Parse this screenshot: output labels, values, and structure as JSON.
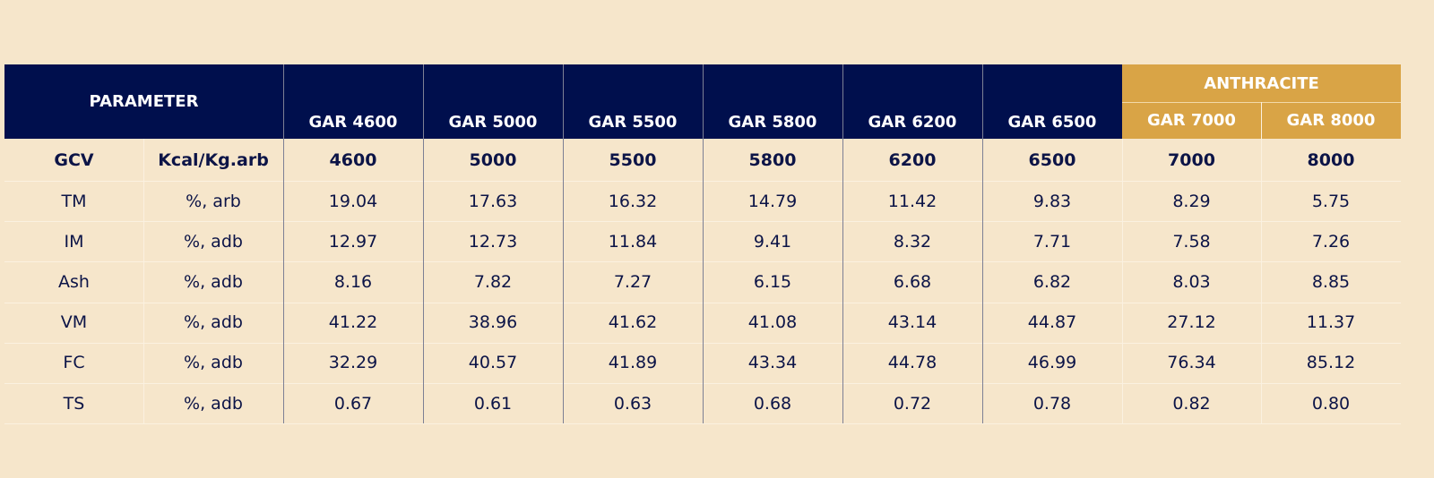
{
  "table": {
    "header": {
      "parameter": "PARAMETER",
      "group": "ANTHRACITE",
      "columns": [
        "GAR 4600",
        "GAR 5000",
        "GAR 5500",
        "GAR 5800",
        "GAR 6200",
        "GAR 6500",
        "GAR 7000",
        "GAR 8000"
      ]
    },
    "rows": [
      [
        "GCV",
        "Kcal/Kg.arb",
        "4600",
        "5000",
        "5500",
        "5800",
        "6200",
        "6500",
        "7000",
        "8000"
      ],
      [
        "TM",
        "%, arb",
        "19.04",
        "17.63",
        "16.32",
        "14.79",
        "11.42",
        "9.83",
        "8.29",
        "5.75"
      ],
      [
        "IM",
        "%, adb",
        "12.97",
        "12.73",
        "11.84",
        "9.41",
        "8.32",
        "7.71",
        "7.58",
        "7.26"
      ],
      [
        "Ash",
        "%, adb",
        "8.16",
        "7.82",
        "7.27",
        "6.15",
        "6.68",
        "6.82",
        "8.03",
        "8.85"
      ],
      [
        "VM",
        "%, adb",
        "41.22",
        "38.96",
        "41.62",
        "41.08",
        "43.14",
        "44.87",
        "27.12",
        "11.37"
      ],
      [
        "FC",
        "%, adb",
        "32.29",
        "40.57",
        "41.89",
        "43.34",
        "44.78",
        "46.99",
        "76.34",
        "85.12"
      ],
      [
        "TS",
        "%, adb",
        "0.67",
        "0.61",
        "0.63",
        "0.68",
        "0.72",
        "0.78",
        "0.82",
        "0.80"
      ]
    ]
  }
}
